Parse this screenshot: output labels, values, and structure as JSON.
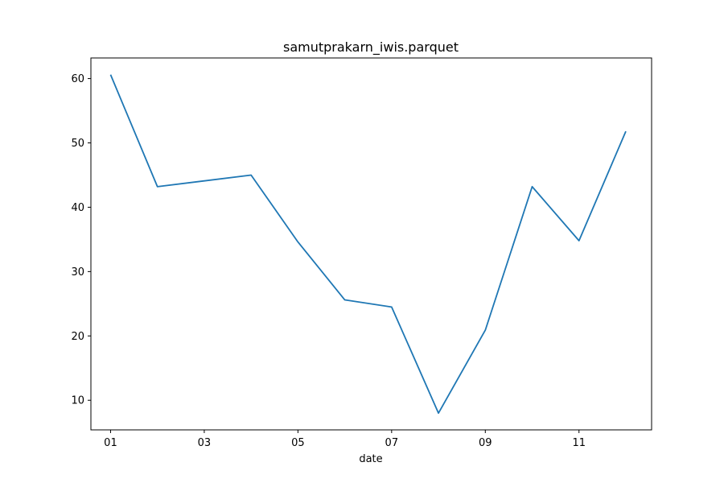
{
  "chart_data": {
    "type": "line",
    "title": "samutprakarn_iwis.parquet",
    "xlabel": "date",
    "ylabel": "",
    "grid": false,
    "x": [
      "01",
      "02",
      "03",
      "04",
      "05",
      "06",
      "07",
      "08",
      "09",
      "10",
      "11",
      "12"
    ],
    "x_tick_labels": [
      "01",
      "03",
      "05",
      "07",
      "09",
      "11"
    ],
    "y_ticks": [
      10,
      20,
      30,
      40,
      50,
      60
    ],
    "y_tick_labels": [
      "10",
      "20",
      "30",
      "40",
      "50",
      "60"
    ],
    "ylim": [
      5.4,
      63.2
    ],
    "xlim": [
      0.58,
      12.55
    ],
    "series": [
      {
        "values": [
          60.6,
          43.2,
          44.1,
          45.0,
          34.6,
          25.6,
          24.5,
          8.0,
          20.9,
          43.2,
          34.8,
          51.8
        ],
        "color": "#1f77b4"
      }
    ]
  }
}
